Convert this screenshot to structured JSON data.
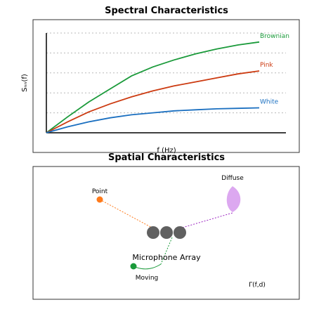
{
  "spectral": {
    "title": "Spectral Characteristics",
    "xlabel": "f (Hz)",
    "ylabel": "Sₙₙ(f)"
  },
  "spatial": {
    "title": "Spatial Characteristics",
    "point_label": "Point",
    "diffuse_label": "Diffuse",
    "array_label": "Microphone Array",
    "moving_label": "Moving",
    "coherence_label": "Γ(f,d)"
  },
  "colors": {
    "brownian": "#1a9a3a",
    "pink": "#cc3a10",
    "white": "#1a6fc0",
    "point": "#ff7a1a",
    "diffuse": "#dca8f0",
    "diffuse_link": "#9a20c0",
    "moving": "#1a9a3a",
    "mic": "#606060"
  },
  "chart_data": {
    "type": "line",
    "title": "Spectral Characteristics",
    "xlabel": "f (Hz)",
    "ylabel": "Sₙₙ(f)",
    "grid": "horizontal dotted",
    "x": [
      0,
      1,
      2,
      3,
      4,
      5,
      6,
      7,
      8,
      9,
      10
    ],
    "series": [
      {
        "name": "Brownian",
        "values": [
          0,
          0.16,
          0.31,
          0.44,
          0.57,
          0.66,
          0.73,
          0.79,
          0.84,
          0.88,
          0.91
        ]
      },
      {
        "name": "Pink",
        "values": [
          0,
          0.11,
          0.21,
          0.29,
          0.36,
          0.42,
          0.47,
          0.51,
          0.55,
          0.59,
          0.62
        ]
      },
      {
        "name": "White",
        "values": [
          0,
          0.06,
          0.11,
          0.15,
          0.18,
          0.2,
          0.22,
          0.23,
          0.24,
          0.245,
          0.25
        ]
      }
    ],
    "ylim": [
      0,
      1
    ]
  }
}
